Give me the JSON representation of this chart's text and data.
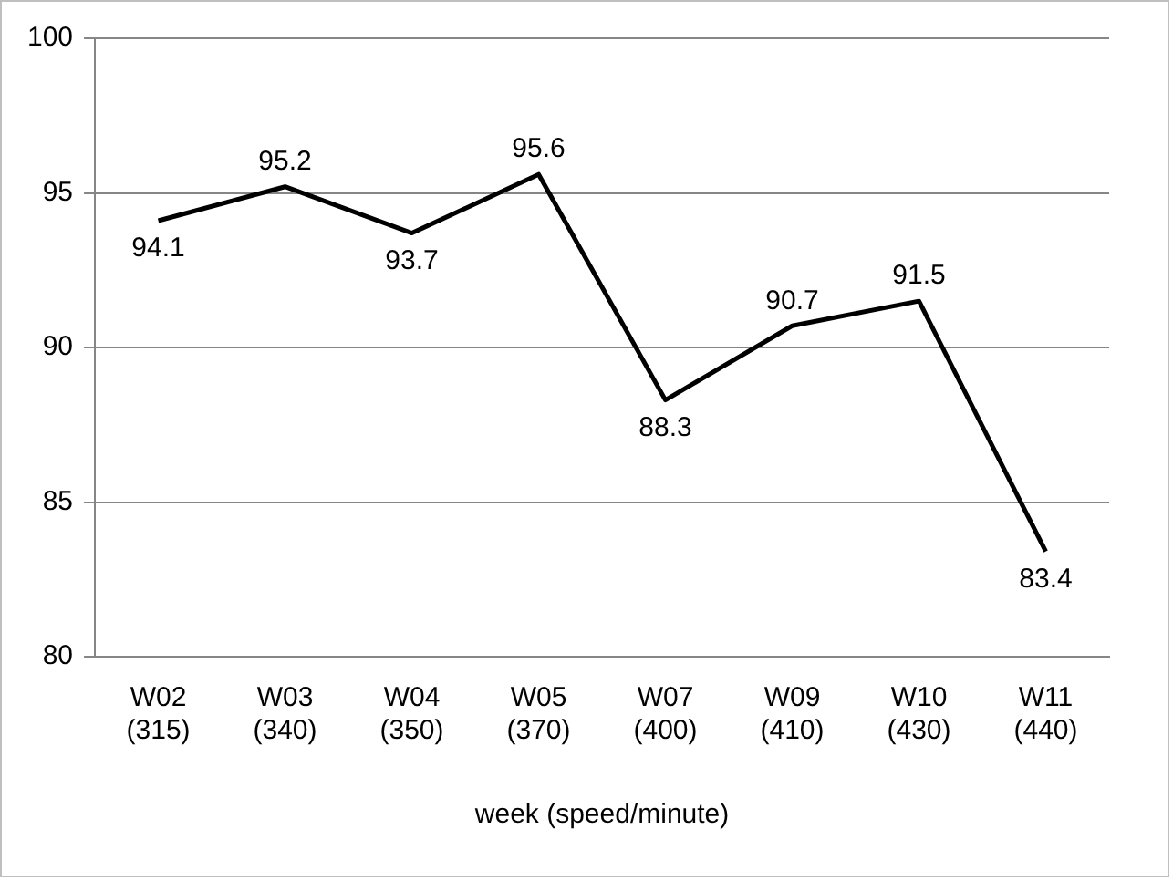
{
  "chart_data": {
    "type": "line",
    "xlabel": "week (speed/minute)",
    "categories": [
      "W02 (315)",
      "W03 (340)",
      "W04 (350)",
      "W05 (370)",
      "W07 (400)",
      "W09 (410)",
      "W10 (430)",
      "W11 (440)"
    ],
    "values": [
      94.1,
      95.2,
      93.7,
      95.6,
      88.3,
      90.7,
      91.5,
      83.4
    ],
    "color": "#000000",
    "ylim": [
      80,
      100
    ],
    "yticks": [
      80,
      85,
      90,
      95,
      100
    ],
    "grid": "y",
    "legend": false,
    "marker": "none",
    "line_style": "solid",
    "data_labels": true
  }
}
